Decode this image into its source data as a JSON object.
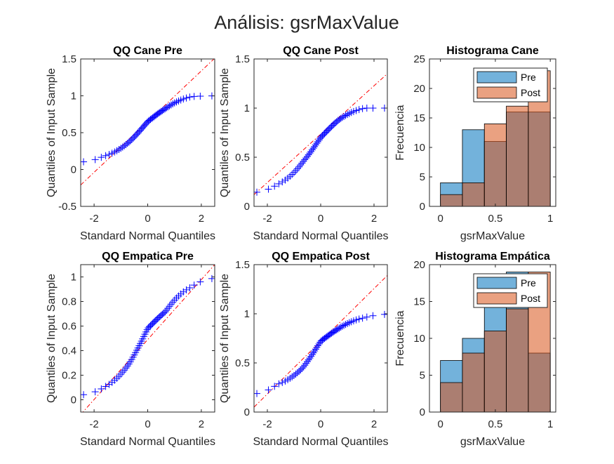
{
  "figure_title": "Análisis: gsrMaxValue",
  "colors": {
    "qq_marker": "#0000ff",
    "qq_refline": "#ff0000",
    "pre_bar": "#0072bd",
    "post_bar": "#d95319",
    "axes": "#262626"
  },
  "chart_data": [
    {
      "type": "scatter",
      "title": "QQ Cane Pre",
      "xlabel": "Standard Normal Quantiles",
      "ylabel": "Quantiles of Input Sample",
      "xlim": [
        -2.5,
        2.5
      ],
      "ylim": [
        -0.5,
        1.5
      ],
      "xticks": [
        -2,
        0,
        2
      ],
      "yticks": [
        -0.5,
        0,
        0.5,
        1,
        1.5
      ],
      "ytick_labels": [
        "-0.5",
        "0",
        "0.5",
        "1",
        "1.5"
      ],
      "data": {
        "n": 60,
        "min": 0.09,
        "max": 1.0,
        "q25": 0.38,
        "median": 0.65,
        "q75": 0.83,
        "tail_low": 0.18,
        "tail_high": 0.99
      },
      "reference_line": [
        [
          -2.5,
          -0.21
        ],
        [
          2.5,
          1.51
        ]
      ]
    },
    {
      "type": "scatter",
      "title": "QQ Cane Post",
      "xlabel": "Standard Normal Quantiles",
      "ylabel": "Quantiles of Input Sample",
      "xlim": [
        -2.5,
        2.5
      ],
      "ylim": [
        0,
        1.5
      ],
      "xticks": [
        -2,
        0,
        2
      ],
      "yticks": [
        0,
        0.5,
        1,
        1.5
      ],
      "ytick_labels": [
        "0",
        "0.5",
        "1",
        "1.5"
      ],
      "data": {
        "n": 60,
        "min": 0.13,
        "max": 1.0,
        "q25": 0.45,
        "median": 0.7,
        "q75": 0.88,
        "tail_low": 0.22,
        "tail_high": 1.0
      },
      "reference_line": [
        [
          -2.5,
          0.12
        ],
        [
          2.5,
          1.35
        ]
      ]
    },
    {
      "type": "bar",
      "title": "Histograma Cane",
      "xlabel": "gsrMaxValue",
      "ylabel": "Frecuencia",
      "xlim": [
        -0.1,
        1.05
      ],
      "ylim": [
        0,
        25
      ],
      "xticks": [
        0,
        0.5,
        1
      ],
      "xtick_labels": [
        "0",
        "0.5",
        "1"
      ],
      "yticks": [
        0,
        5,
        10,
        15,
        20,
        25
      ],
      "bin_edges": [
        0,
        0.2,
        0.4,
        0.6,
        0.8,
        1.0
      ],
      "series": [
        {
          "name": "Pre",
          "values": [
            4,
            13,
            11,
            16,
            16
          ]
        },
        {
          "name": "Post",
          "values": [
            2,
            4,
            14,
            17,
            23
          ]
        }
      ],
      "legend": "top-right"
    },
    {
      "type": "scatter",
      "title": "QQ Empatica Pre",
      "xlabel": "Standard Normal Quantiles",
      "ylabel": "Quantiles of Input Sample",
      "xlim": [
        -2.5,
        2.5
      ],
      "ylim": [
        -0.1,
        1.1
      ],
      "xticks": [
        -2,
        0,
        2
      ],
      "yticks": [
        0,
        0.2,
        0.4,
        0.6,
        0.8,
        1
      ],
      "ytick_labels": [
        "0",
        "0.2",
        "0.4",
        "0.6",
        "0.8",
        "1"
      ],
      "data": {
        "n": 60,
        "min": 0.03,
        "max": 1.0,
        "q25": 0.3,
        "median": 0.58,
        "q75": 0.72,
        "tail_low": 0.1,
        "tail_high": 0.92
      },
      "reference_line": [
        [
          -2.5,
          -0.12
        ],
        [
          2.5,
          1.1
        ]
      ]
    },
    {
      "type": "scatter",
      "title": "QQ Empatica Post",
      "xlabel": "Standard Normal Quantiles",
      "ylabel": "Quantiles of Input Sample",
      "xlim": [
        -2.5,
        2.5
      ],
      "ylim": [
        0,
        1.5
      ],
      "xticks": [
        -2,
        0,
        2
      ],
      "yticks": [
        0,
        0.5,
        1,
        1.5
      ],
      "ytick_labels": [
        "0",
        "0.5",
        "1",
        "1.5"
      ],
      "data": {
        "n": 60,
        "min": 0.17,
        "max": 1.0,
        "q25": 0.45,
        "median": 0.72,
        "q75": 0.85,
        "tail_low": 0.28,
        "tail_high": 0.96
      },
      "reference_line": [
        [
          -2.5,
          0.05
        ],
        [
          2.5,
          1.39
        ]
      ]
    },
    {
      "type": "bar",
      "title": "Histograma Empática",
      "xlabel": "gsrMaxValue",
      "ylabel": "Frecuencia",
      "xlim": [
        -0.1,
        1.05
      ],
      "ylim": [
        0,
        20
      ],
      "xticks": [
        0,
        0.5,
        1
      ],
      "xtick_labels": [
        "0",
        "0.5",
        "1"
      ],
      "yticks": [
        0,
        5,
        10,
        15,
        20
      ],
      "bin_edges": [
        0,
        0.2,
        0.4,
        0.6,
        0.8,
        1.0
      ],
      "series": [
        {
          "name": "Pre",
          "values": [
            7,
            10,
            16,
            19,
            8
          ]
        },
        {
          "name": "Post",
          "values": [
            4,
            8,
            11,
            14,
            19
          ]
        }
      ],
      "legend": "top-right"
    }
  ]
}
